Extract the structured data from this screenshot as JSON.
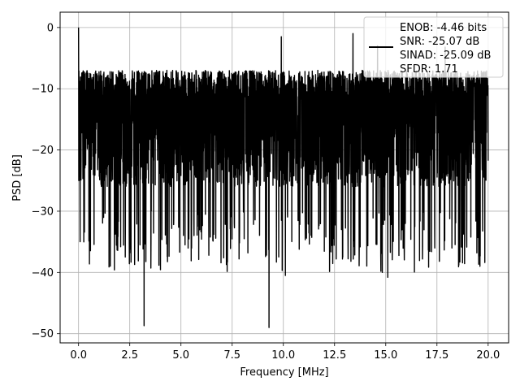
{
  "chart_data": {
    "type": "line",
    "title": "",
    "xlabel": "Frequency [MHz]",
    "ylabel": "PSD [dB]",
    "xlim": [
      -0.9,
      21.0
    ],
    "ylim": [
      -51.5,
      2.5
    ],
    "xticks": [
      0.0,
      2.5,
      5.0,
      7.5,
      10.0,
      12.5,
      15.0,
      17.5,
      20.0
    ],
    "xtick_labels": [
      "0.0",
      "2.5",
      "5.0",
      "7.5",
      "10.0",
      "12.5",
      "15.0",
      "17.5",
      "20.0"
    ],
    "yticks": [
      0,
      -10,
      -20,
      -30,
      -40,
      -50
    ],
    "ytick_labels": [
      "0",
      "−10",
      "−20",
      "−30",
      "−40",
      "−50"
    ],
    "grid": true,
    "legend_placement": "top-right",
    "series_color": "#000000",
    "legend_lines": [
      "ENOB: -4.46 bits",
      "SNR: -25.07 dB",
      "SINAD: -25.09 dB",
      "SFDR: 1.71"
    ],
    "x_range": [
      0.0,
      20.0
    ],
    "noise_floor_db": [
      -11,
      -22
    ],
    "dc_peak_db": 0,
    "notable_dips": [
      {
        "x": 3.2,
        "y": -48.7
      },
      {
        "x": 9.3,
        "y": -49.0
      },
      {
        "x": 10.1,
        "y": -40.5
      },
      {
        "x": 15.1,
        "y": -40.8
      },
      {
        "x": 3.0,
        "y": -35.5
      },
      {
        "x": 5.2,
        "y": -35.5
      },
      {
        "x": 12.9,
        "y": -37.5
      },
      {
        "x": 19.6,
        "y": -39.0
      }
    ]
  }
}
